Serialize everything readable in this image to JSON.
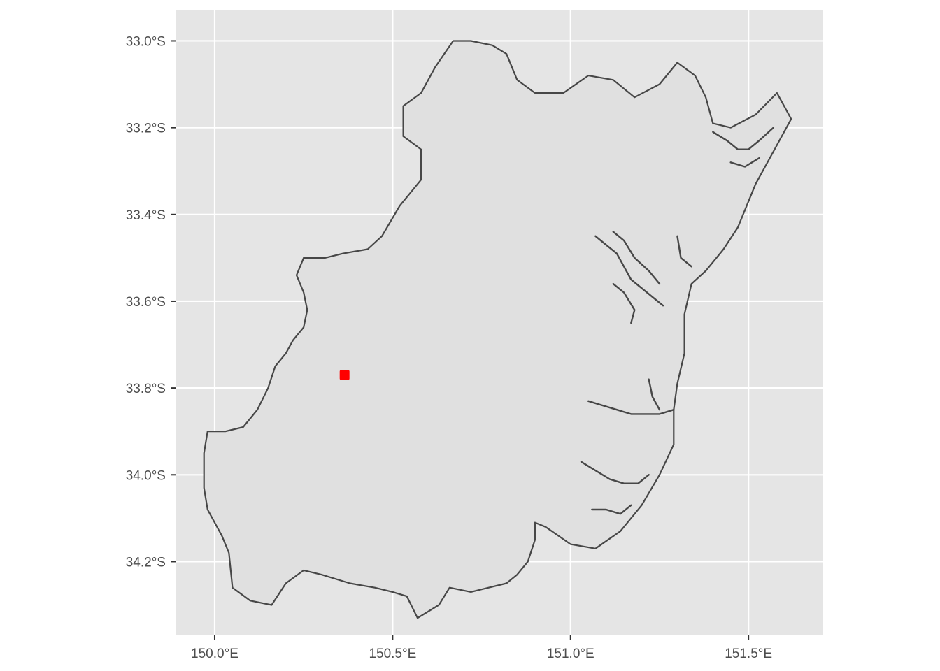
{
  "chart_data": {
    "type": "map",
    "title": "",
    "xlabel": "",
    "ylabel": "",
    "xlim": [
      149.89,
      151.71
    ],
    "ylim": [
      -34.37,
      -32.93
    ],
    "x_ticks": [
      {
        "value": 150.0,
        "label": "150.0°E"
      },
      {
        "value": 150.5,
        "label": "150.5°E"
      },
      {
        "value": 151.0,
        "label": "151.0°E"
      },
      {
        "value": 151.5,
        "label": "151.5°E"
      }
    ],
    "y_ticks": [
      {
        "value": -33.0,
        "label": "33.0°S"
      },
      {
        "value": -33.2,
        "label": "33.2°S"
      },
      {
        "value": -33.4,
        "label": "33.4°S"
      },
      {
        "value": -33.6,
        "label": "33.6°S"
      },
      {
        "value": -33.8,
        "label": "33.8°S"
      },
      {
        "value": -34.0,
        "label": "34.0°S"
      },
      {
        "value": -34.2,
        "label": "34.2°S"
      }
    ],
    "grid": true,
    "panel_color": "#e5e5e5",
    "grid_color": "#ffffff",
    "region_fill": "#e0e0e0",
    "region_stroke": "#474747",
    "point_color": "#ff0000",
    "region_outline": [
      [
        150.67,
        -33.0
      ],
      [
        150.72,
        -33.0
      ],
      [
        150.78,
        -33.01
      ],
      [
        150.82,
        -33.03
      ],
      [
        150.85,
        -33.09
      ],
      [
        150.9,
        -33.12
      ],
      [
        150.98,
        -33.12
      ],
      [
        151.05,
        -33.08
      ],
      [
        151.12,
        -33.09
      ],
      [
        151.18,
        -33.13
      ],
      [
        151.25,
        -33.1
      ],
      [
        151.3,
        -33.05
      ],
      [
        151.35,
        -33.08
      ],
      [
        151.38,
        -33.13
      ],
      [
        151.4,
        -33.19
      ],
      [
        151.45,
        -33.2
      ],
      [
        151.52,
        -33.17
      ],
      [
        151.58,
        -33.12
      ],
      [
        151.62,
        -33.18
      ],
      [
        151.58,
        -33.24
      ],
      [
        151.52,
        -33.33
      ],
      [
        151.47,
        -33.43
      ],
      [
        151.43,
        -33.48
      ],
      [
        151.38,
        -33.53
      ],
      [
        151.34,
        -33.56
      ],
      [
        151.32,
        -33.63
      ],
      [
        151.32,
        -33.72
      ],
      [
        151.3,
        -33.79
      ],
      [
        151.29,
        -33.85
      ],
      [
        151.29,
        -33.93
      ],
      [
        151.25,
        -34.0
      ],
      [
        151.2,
        -34.07
      ],
      [
        151.14,
        -34.13
      ],
      [
        151.07,
        -34.17
      ],
      [
        151.0,
        -34.16
      ],
      [
        150.93,
        -34.12
      ],
      [
        150.9,
        -34.11
      ],
      [
        150.9,
        -34.15
      ],
      [
        150.88,
        -34.2
      ],
      [
        150.85,
        -34.23
      ],
      [
        150.82,
        -34.25
      ],
      [
        150.77,
        -34.26
      ],
      [
        150.72,
        -34.27
      ],
      [
        150.66,
        -34.26
      ],
      [
        150.63,
        -34.3
      ],
      [
        150.57,
        -34.33
      ],
      [
        150.54,
        -34.28
      ],
      [
        150.5,
        -34.27
      ],
      [
        150.45,
        -34.26
      ],
      [
        150.38,
        -34.25
      ],
      [
        150.3,
        -34.23
      ],
      [
        150.25,
        -34.22
      ],
      [
        150.2,
        -34.25
      ],
      [
        150.16,
        -34.3
      ],
      [
        150.1,
        -34.29
      ],
      [
        150.05,
        -34.26
      ],
      [
        150.04,
        -34.18
      ],
      [
        150.02,
        -34.14
      ],
      [
        149.98,
        -34.08
      ],
      [
        149.97,
        -34.03
      ],
      [
        149.97,
        -33.95
      ],
      [
        149.98,
        -33.9
      ],
      [
        150.03,
        -33.9
      ],
      [
        150.08,
        -33.89
      ],
      [
        150.12,
        -33.85
      ],
      [
        150.15,
        -33.8
      ],
      [
        150.17,
        -33.75
      ],
      [
        150.2,
        -33.72
      ],
      [
        150.22,
        -33.69
      ],
      [
        150.25,
        -33.66
      ],
      [
        150.26,
        -33.62
      ],
      [
        150.25,
        -33.58
      ],
      [
        150.23,
        -33.54
      ],
      [
        150.25,
        -33.5
      ],
      [
        150.31,
        -33.5
      ],
      [
        150.36,
        -33.49
      ],
      [
        150.43,
        -33.48
      ],
      [
        150.47,
        -33.45
      ],
      [
        150.52,
        -33.38
      ],
      [
        150.58,
        -33.32
      ],
      [
        150.58,
        -33.25
      ],
      [
        150.53,
        -33.22
      ],
      [
        150.53,
        -33.15
      ],
      [
        150.58,
        -33.12
      ],
      [
        150.62,
        -33.06
      ],
      [
        150.67,
        -33.0
      ]
    ],
    "waterways": [
      [
        [
          151.07,
          -33.45
        ],
        [
          151.1,
          -33.47
        ],
        [
          151.13,
          -33.49
        ],
        [
          151.15,
          -33.52
        ],
        [
          151.17,
          -33.55
        ],
        [
          151.2,
          -33.57
        ],
        [
          151.23,
          -33.59
        ],
        [
          151.26,
          -33.61
        ]
      ],
      [
        [
          151.12,
          -33.44
        ],
        [
          151.15,
          -33.46
        ],
        [
          151.18,
          -33.5
        ],
        [
          151.22,
          -33.53
        ],
        [
          151.25,
          -33.56
        ]
      ],
      [
        [
          151.12,
          -33.56
        ],
        [
          151.15,
          -33.58
        ],
        [
          151.18,
          -33.62
        ],
        [
          151.17,
          -33.65
        ]
      ],
      [
        [
          151.3,
          -33.45
        ],
        [
          151.31,
          -33.5
        ],
        [
          151.34,
          -33.52
        ]
      ],
      [
        [
          151.05,
          -33.83
        ],
        [
          151.09,
          -33.84
        ],
        [
          151.13,
          -33.85
        ],
        [
          151.17,
          -33.86
        ],
        [
          151.21,
          -33.86
        ],
        [
          151.25,
          -33.86
        ],
        [
          151.29,
          -33.85
        ]
      ],
      [
        [
          151.22,
          -33.78
        ],
        [
          151.23,
          -33.82
        ],
        [
          151.25,
          -33.85
        ]
      ],
      [
        [
          151.03,
          -33.97
        ],
        [
          151.07,
          -33.99
        ],
        [
          151.11,
          -34.01
        ],
        [
          151.15,
          -34.02
        ],
        [
          151.19,
          -34.02
        ],
        [
          151.22,
          -34.0
        ]
      ],
      [
        [
          151.06,
          -34.08
        ],
        [
          151.1,
          -34.08
        ],
        [
          151.14,
          -34.09
        ],
        [
          151.17,
          -34.07
        ]
      ],
      [
        [
          151.4,
          -33.21
        ],
        [
          151.44,
          -33.23
        ],
        [
          151.47,
          -33.25
        ],
        [
          151.5,
          -33.25
        ],
        [
          151.53,
          -33.23
        ],
        [
          151.57,
          -33.2
        ]
      ],
      [
        [
          151.45,
          -33.28
        ],
        [
          151.49,
          -33.29
        ],
        [
          151.53,
          -33.27
        ]
      ]
    ],
    "points": [
      {
        "lon": 150.365,
        "lat": -33.77
      }
    ]
  }
}
